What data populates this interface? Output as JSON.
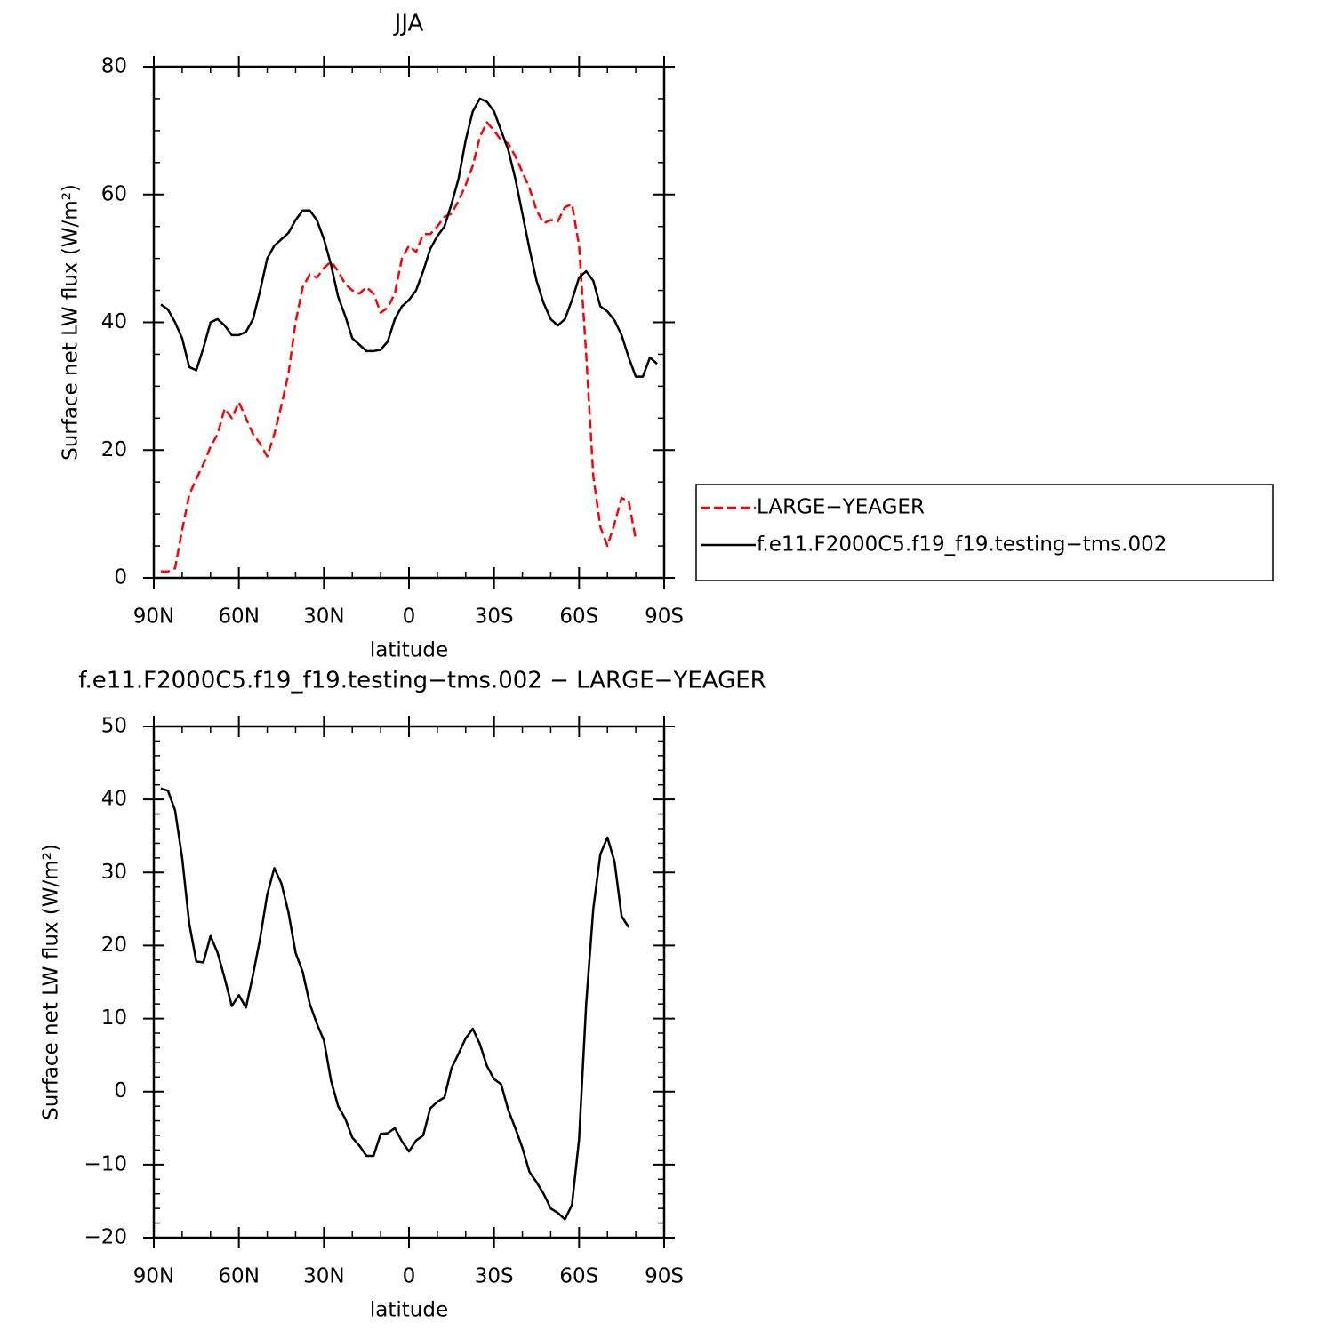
{
  "chart_data": [
    {
      "type": "line",
      "title": "JJA",
      "xlabel": "latitude",
      "ylabel": "Surface net LW flux (W/m²)",
      "x": [
        87.5,
        85,
        82.5,
        80,
        77.5,
        75,
        72.5,
        70,
        67.5,
        65,
        62.5,
        60,
        57.5,
        55,
        52.5,
        50,
        47.5,
        45,
        42.5,
        40,
        37.5,
        35,
        32.5,
        30,
        27.5,
        25,
        22.5,
        20,
        17.5,
        15,
        12.5,
        10,
        7.5,
        5,
        2.5,
        0,
        -2.5,
        -5,
        -7.5,
        -10,
        -12.5,
        -15,
        -17.5,
        -20,
        -22.5,
        -25,
        -27.5,
        -30,
        -32.5,
        -35,
        -37.5,
        -40,
        -42.5,
        -45,
        -47.5,
        -50,
        -52.5,
        -55,
        -57.5,
        -60,
        -62.5,
        -65,
        -67.5,
        -70,
        -72.5,
        -75,
        -77.5,
        -80,
        -82.5,
        -85,
        -87.5
      ],
      "series": [
        {
          "name": "LARGE−YEAGER",
          "color": "#ff0000",
          "linestyle": "dashed",
          "values": [
            1,
            1,
            1.5,
            7.5,
            13,
            15.5,
            17.8,
            20.5,
            22.5,
            26.5,
            25,
            27.5,
            25,
            22.5,
            21,
            19,
            22.5,
            27,
            32,
            40,
            45.5,
            47.5,
            47,
            48.5,
            49.5,
            48,
            46,
            45,
            44.5,
            45.5,
            44.5,
            41.5,
            42.3,
            44.5,
            50,
            52,
            51,
            53.8,
            53.8,
            55,
            56.5,
            57,
            59,
            61.5,
            64.5,
            69,
            71.3,
            70,
            68.5,
            68,
            66,
            63.5,
            61,
            57.5,
            55.5,
            56,
            55.8,
            58,
            58.5,
            52,
            35,
            16,
            8,
            5,
            8.5,
            12.5,
            12,
            6,
            null,
            null,
            null
          ]
        },
        {
          "name": "f.e11.F2000C5.f19_f19.testing−tms.002",
          "color": "#000000",
          "linestyle": "solid",
          "values": [
            42.8,
            42,
            40,
            37.5,
            33,
            32.5,
            36,
            40,
            40.5,
            39.5,
            38,
            38,
            38.5,
            40.5,
            45,
            50,
            52,
            53,
            54,
            56,
            57.5,
            57.5,
            56,
            53,
            49,
            44,
            41,
            37.5,
            36.5,
            35.5,
            35.5,
            35.7,
            37,
            40.5,
            42.5,
            43.5,
            45,
            48,
            51.5,
            53.5,
            55,
            58.5,
            62.5,
            68.5,
            73,
            75,
            74.5,
            73,
            70,
            67,
            62.5,
            57,
            51.5,
            46.5,
            43,
            40.5,
            39.5,
            40.5,
            43.5,
            47,
            48,
            46.5,
            42.5,
            41.7,
            40.3,
            38,
            34.5,
            31.5,
            31.5,
            34.5,
            33.5
          ]
        }
      ],
      "xlim": [
        90,
        -90
      ],
      "xticks": [
        {
          "value": 90,
          "label": "90N"
        },
        {
          "value": 60,
          "label": "60N"
        },
        {
          "value": 30,
          "label": "30N"
        },
        0,
        {
          "value": -30,
          "label": "30S"
        },
        {
          "value": -60,
          "label": "60S"
        },
        {
          "value": -90,
          "label": "90S"
        }
      ],
      "ylim": [
        0,
        80
      ],
      "yticks": [
        0,
        20,
        40,
        60,
        80
      ],
      "legend": "right"
    },
    {
      "type": "line",
      "title": "f.e11.F2000C5.f19_f19.testing−tms.002 − LARGE−YEAGER",
      "xlabel": "latitude",
      "ylabel": "Surface net LW flux (W/m²)",
      "x": [
        87.5,
        85,
        82.5,
        80,
        77.5,
        75,
        72.5,
        70,
        67.5,
        65,
        62.5,
        60,
        57.5,
        55,
        52.5,
        50,
        47.5,
        45,
        42.5,
        40,
        37.5,
        35,
        32.5,
        30,
        27.5,
        25,
        22.5,
        20,
        17.5,
        15,
        12.5,
        10,
        7.5,
        5,
        2.5,
        0,
        -2.5,
        -5,
        -7.5,
        -10,
        -12.5,
        -15,
        -17.5,
        -20,
        -22.5,
        -25,
        -27.5,
        -30,
        -32.5,
        -35,
        -37.5,
        -40,
        -42.5,
        -45,
        -47.5,
        -50,
        -52.5,
        -55,
        -57.5,
        -60,
        -62.5,
        -65,
        -67.5,
        -70,
        -72.5,
        -75,
        -77.5,
        -80,
        -82.5,
        -85,
        -87.5
      ],
      "series": [
        {
          "color": "#000000",
          "linestyle": "solid",
          "values": [
            41.5,
            41.2,
            38.5,
            32,
            23,
            17.8,
            17.7,
            21.3,
            19,
            15.5,
            11.7,
            13.2,
            11.5,
            16,
            21,
            27,
            30.6,
            28.5,
            24.5,
            19,
            16.4,
            12,
            9.3,
            7,
            1.5,
            -2,
            -3.7,
            -6.3,
            -7.4,
            -8.8,
            -8.8,
            -5.8,
            -5.7,
            -5,
            -6.8,
            -8.2,
            -6.7,
            -6,
            -2.3,
            -1.4,
            -0.8,
            3.2,
            5.2,
            7.3,
            8.6,
            6.5,
            3.5,
            1.7,
            1,
            -2.5,
            -5,
            -7.7,
            -11,
            -12.4,
            -14,
            -16,
            -16.6,
            -17.5,
            -15.5,
            -6.5,
            12,
            25,
            32.5,
            34.8,
            31.5,
            24,
            22.5,
            null,
            null,
            null,
            null
          ]
        }
      ],
      "xlim": [
        90,
        -90
      ],
      "xticks": [
        {
          "value": 90,
          "label": "90N"
        },
        {
          "value": 60,
          "label": "60N"
        },
        {
          "value": 30,
          "label": "30N"
        },
        0,
        {
          "value": -30,
          "label": "30S"
        },
        {
          "value": -60,
          "label": "60S"
        },
        {
          "value": -90,
          "label": "90S"
        }
      ],
      "ylim": [
        -20,
        50
      ],
      "yticks": [
        {
          "value": -20,
          "label": "−20"
        },
        {
          "value": -10,
          "label": "−10"
        },
        0,
        10,
        20,
        30,
        40,
        50
      ]
    }
  ]
}
